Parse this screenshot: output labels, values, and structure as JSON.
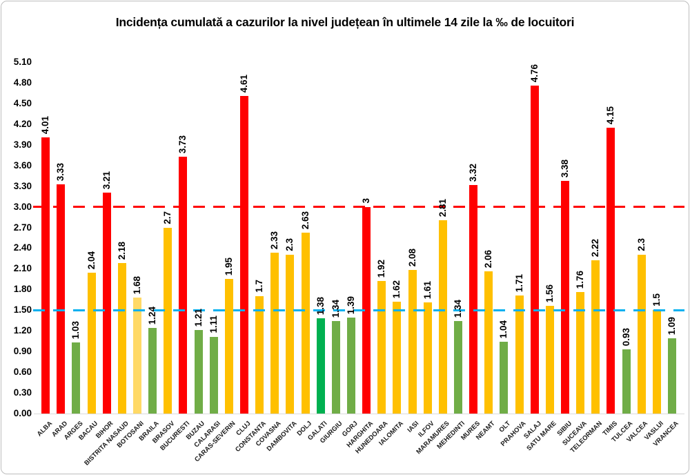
{
  "chart_data": {
    "type": "bar",
    "title": "Incidența cumulată a cazurilor la nivel județean în ultimele 14 zile la ‰ de locuitori",
    "xlabel": "",
    "ylabel": "",
    "ylim": [
      0,
      5.1
    ],
    "ytick_step": 0.3,
    "ytick_labels": [
      "0.00",
      "0.30",
      "0.60",
      "0.90",
      "1.20",
      "1.50",
      "1.80",
      "2.10",
      "2.40",
      "2.70",
      "3.00",
      "3.30",
      "3.60",
      "3.90",
      "4.20",
      "4.50",
      "4.80",
      "5.10"
    ],
    "grid": false,
    "legend": "none",
    "categories": [
      "ALBA",
      "ARAD",
      "ARGES",
      "BACAU",
      "BIHOR",
      "BISTRITA NASAUD",
      "BOTOSANI",
      "BRAILA",
      "BRASOV",
      "BUCURESTI",
      "BUZAU",
      "CALARASI",
      "CARAS-SEVERIN",
      "CLUJ",
      "CONSTANTA",
      "COVASNA",
      "DAMBOVITA",
      "DOLJ",
      "GALATI",
      "GIURGIU",
      "GORJ",
      "HARGHITA",
      "HUNEDOARA",
      "IALOMITA",
      "IASI",
      "ILFOV",
      "MARAMURES",
      "MEHEDINTI",
      "MURES",
      "NEAMT",
      "OLT",
      "PRAHOVA",
      "SALAJ",
      "SATU MARE",
      "SIBIU",
      "SUCEAVA",
      "TELEORMAN",
      "TIMIS",
      "TULCEA",
      "VALCEA",
      "VASLUI",
      "VRANCEA"
    ],
    "values": [
      4.01,
      3.33,
      1.03,
      2.04,
      3.21,
      2.18,
      1.68,
      1.24,
      2.7,
      3.73,
      1.21,
      1.11,
      1.95,
      4.61,
      1.7,
      2.33,
      2.3,
      2.63,
      1.38,
      1.34,
      1.39,
      3,
      1.92,
      1.62,
      2.08,
      1.61,
      2.81,
      1.34,
      3.32,
      2.06,
      1.04,
      1.71,
      4.76,
      1.56,
      3.38,
      1.76,
      2.22,
      4.15,
      0.93,
      2.3,
      1.5,
      1.09
    ],
    "value_labels": [
      "4.01",
      "3.33",
      "1.03",
      "2.04",
      "3.21",
      "2.18",
      "1.68",
      "1.24",
      "2.7",
      "3.73",
      "1.21",
      "1.11",
      "1.95",
      "4.61",
      "1.7",
      "2.33",
      "2.3",
      "2.63",
      "1.38",
      "1.34",
      "1.39",
      "3",
      "1.92",
      "1.62",
      "2.08",
      "1.61",
      "2.81",
      "1.34",
      "3.32",
      "2.06",
      "1.04",
      "1.71",
      "4.76",
      "1.56",
      "3.38",
      "1.76",
      "2.22",
      "4.15",
      "0.93",
      "2.3",
      "1.5",
      "1.09"
    ],
    "bar_colors": [
      "red",
      "red",
      "olive_green",
      "gold",
      "red",
      "gold",
      "pale_yellow",
      "olive_green",
      "gold",
      "red",
      "olive_green",
      "olive_green",
      "gold",
      "red",
      "gold",
      "gold",
      "gold",
      "gold",
      "bright_green",
      "olive_green",
      "olive_green",
      "red",
      "gold",
      "gold",
      "gold",
      "gold",
      "gold",
      "olive_green",
      "red",
      "gold",
      "olive_green",
      "gold",
      "red",
      "gold",
      "red",
      "gold",
      "gold",
      "red",
      "olive_green",
      "gold",
      "gold",
      "olive_green"
    ],
    "colors": {
      "red": "#FF0000",
      "gold": "#FFC000",
      "pale_yellow": "#FFD966",
      "olive_green": "#70AD47",
      "bright_green": "#00B050"
    },
    "reference_lines": [
      {
        "name": "red-threshold",
        "value": 3.0,
        "color": "#FF0000",
        "style": "dashed"
      },
      {
        "name": "blue-threshold",
        "value": 1.5,
        "color": "#00B0F0",
        "style": "dashed"
      }
    ]
  }
}
